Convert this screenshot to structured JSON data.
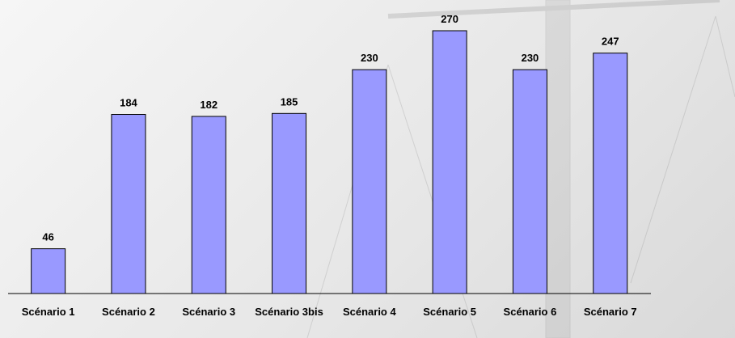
{
  "chart_data": {
    "type": "bar",
    "categories": [
      "Scénario 1",
      "Scénario 2",
      "Scénario 3",
      "Scénario 3bis",
      "Scénario 4",
      "Scénario 5",
      "Scénario 6",
      "Scénario 7"
    ],
    "values": [
      46,
      184,
      182,
      185,
      230,
      270,
      230,
      247
    ],
    "color": "#9999ff"
  }
}
